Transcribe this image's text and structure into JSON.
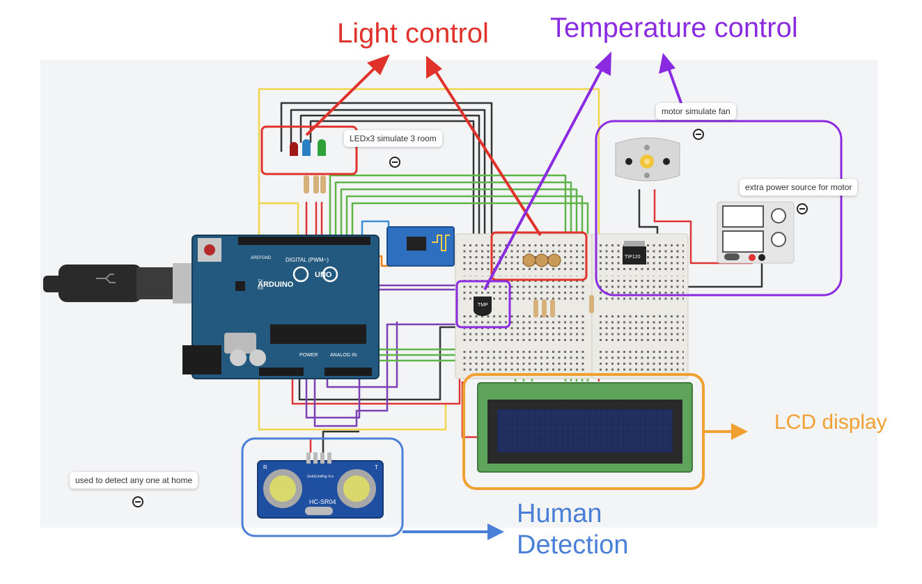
{
  "annotations": {
    "light_control": "Light control",
    "temperature_control": "Temperature control",
    "lcd_display": "LCD display",
    "human_detection": "Human Detection"
  },
  "notes": {
    "leds": "LEDx3 simulate 3 room",
    "motor": "motor simulate fan",
    "power": "extra power source for motor",
    "home": "used to detect any one at home"
  },
  "board": {
    "brand": "ARDUINO",
    "model": "UNO",
    "digital_label": "DIGITAL (PWM~)",
    "power_label": "POWER",
    "analog_label": "ANALOG IN",
    "pin_aref": "AREF",
    "pin_gnd": "GND",
    "pin_tx": "TX",
    "pin_rx": "RX"
  },
  "components": {
    "temp_sensor": "TMP",
    "transistor": "TIP120",
    "ultrasonic_model": "HC-SR04",
    "ultrasonic_pins": [
      "Vcc",
      "Trig",
      "Echo",
      "Gnd"
    ],
    "ultrasonic_t": "T",
    "ultrasonic_r": "R"
  },
  "colors": {
    "light_control": "#e0322a",
    "temperature_control": "#8a2be2",
    "lcd_display": "#f0a030",
    "human_detection": "#4a7fd8",
    "canvas": "#f3f4f5",
    "arduino": "#24597f",
    "breadboard": "#eceae4",
    "lcd_pcb": "#5fa45b",
    "lcd_screen": "#1e2a5a"
  },
  "icons": {
    "collapse": "minus-circle-icon",
    "usb": "usb-cable-icon",
    "motor": "dc-motor-icon"
  }
}
